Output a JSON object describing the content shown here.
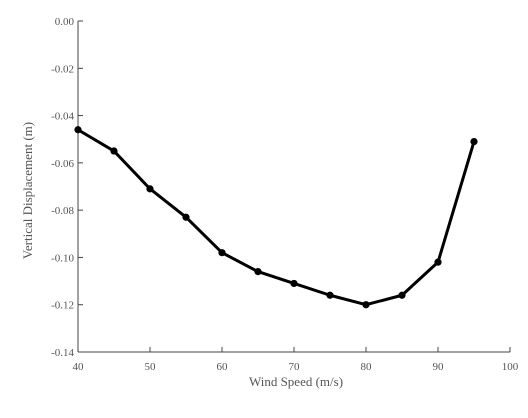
{
  "chart_data": {
    "type": "line",
    "title": "",
    "xlabel": "Wind Speed  (m/s)",
    "ylabel": "Vertical Displacement  (m)",
    "xlim": [
      40,
      100
    ],
    "ylim": [
      -0.14,
      0.0
    ],
    "grid": false,
    "x_ticks": [
      "40",
      "50",
      "60",
      "70",
      "80",
      "90",
      "100"
    ],
    "y_ticks": [
      "0.00",
      "-0.02",
      "-0.04",
      "-0.06",
      "-0.08",
      "-0.10",
      "-0.12",
      "-0.14"
    ],
    "x_tick_values": [
      40,
      50,
      60,
      70,
      80,
      90,
      100
    ],
    "y_tick_values": [
      0.0,
      -0.02,
      -0.04,
      -0.06,
      -0.08,
      -0.1,
      -0.12,
      -0.14
    ],
    "x": [
      40,
      45,
      50,
      55,
      60,
      65,
      70,
      75,
      80,
      85,
      90,
      95
    ],
    "series": [
      {
        "values": [
          -0.046,
          -0.055,
          -0.071,
          -0.083,
          -0.098,
          -0.106,
          -0.111,
          -0.116,
          -0.12,
          -0.116,
          -0.102,
          -0.051
        ],
        "color": "#000000"
      }
    ]
  }
}
